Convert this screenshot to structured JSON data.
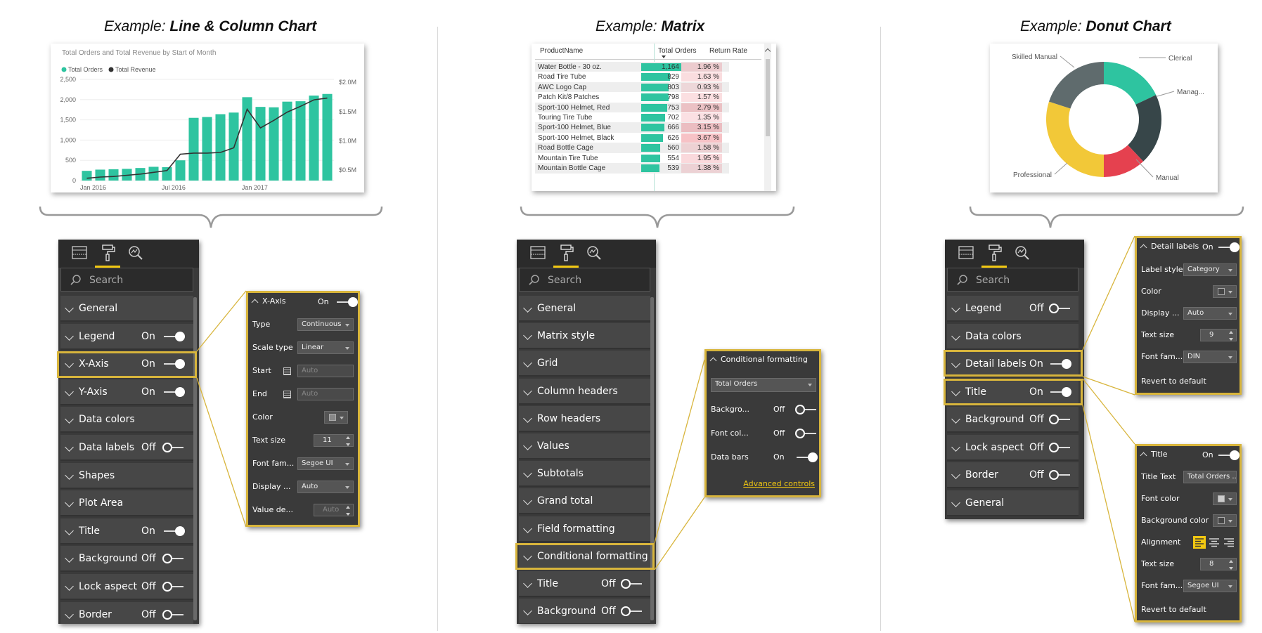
{
  "titles": {
    "col1_prefix": "Example: ",
    "col1_bold": "Line & Column Chart",
    "col2_prefix": "Example: ",
    "col2_bold": "Matrix",
    "col3_prefix": "Example: ",
    "col3_bold": "Donut Chart"
  },
  "colors": {
    "teal": "#2ec4a0",
    "line": "#333333",
    "highlight": "#d8b53c",
    "pane_bg": "#3a3a3a",
    "accent_yellow": "#f2c811"
  },
  "chart_data": [
    {
      "type": "bar+line",
      "title": "Total Orders and Total Revenue by Start of Month",
      "legend": [
        "Total Orders",
        "Total Revenue"
      ],
      "legend_colors": [
        "#2ec4a0",
        "#333333"
      ],
      "legend_position": "top-left",
      "x_ticks": [
        "Jan 2016",
        "Jul 2016",
        "Jan 2017"
      ],
      "y_ticks": [
        "0",
        "500",
        "1,000",
        "1,500",
        "2,000",
        "2,500"
      ],
      "y2_ticks": [
        "$0.5M",
        "$1.0M",
        "$1.5M",
        "$2.0M"
      ],
      "ylim": [
        0,
        2500
      ],
      "y2lim": [
        0.32,
        2.05
      ],
      "series": [
        {
          "name": "Total Orders",
          "type": "bar",
          "values": [
            240,
            270,
            280,
            290,
            310,
            340,
            330,
            500,
            1550,
            1570,
            1640,
            1680,
            2060,
            1820,
            1810,
            1950,
            1960,
            2100,
            2140
          ]
        },
        {
          "name": "Total Revenue",
          "type": "line",
          "values": [
            0.36,
            0.38,
            0.39,
            0.41,
            0.43,
            0.46,
            0.49,
            0.77,
            0.79,
            0.79,
            0.8,
            0.88,
            1.54,
            1.22,
            1.35,
            1.49,
            1.59,
            1.7,
            1.73
          ]
        }
      ],
      "grid": true
    },
    {
      "type": "table",
      "columns": [
        "ProductName",
        "Total Orders",
        "Return Rate"
      ],
      "rows": [
        {
          "product": "Water Bottle - 30 oz.",
          "orders": 1164,
          "orders_text": "1,164",
          "return_rate": "1.96 %",
          "rr_value": 1.96
        },
        {
          "product": "Road Tire Tube",
          "orders": 829,
          "orders_text": "829",
          "return_rate": "1.63 %",
          "rr_value": 1.63
        },
        {
          "product": "AWC Logo Cap",
          "orders": 803,
          "orders_text": "803",
          "return_rate": "0.93 %",
          "rr_value": 0.93
        },
        {
          "product": "Patch Kit/8 Patches",
          "orders": 798,
          "orders_text": "798",
          "return_rate": "1.57 %",
          "rr_value": 1.57
        },
        {
          "product": "Sport-100 Helmet, Red",
          "orders": 753,
          "orders_text": "753",
          "return_rate": "2.79 %",
          "rr_value": 2.79
        },
        {
          "product": "Touring Tire Tube",
          "orders": 702,
          "orders_text": "702",
          "return_rate": "1.35 %",
          "rr_value": 1.35
        },
        {
          "product": "Sport-100 Helmet, Blue",
          "orders": 666,
          "orders_text": "666",
          "return_rate": "3.15 %",
          "rr_value": 3.15
        },
        {
          "product": "Sport-100 Helmet, Black",
          "orders": 626,
          "orders_text": "626",
          "return_rate": "3.67 %",
          "rr_value": 3.67
        },
        {
          "product": "Road Bottle Cage",
          "orders": 560,
          "orders_text": "560",
          "return_rate": "1.58 %",
          "rr_value": 1.58
        },
        {
          "product": "Mountain Tire Tube",
          "orders": 554,
          "orders_text": "554",
          "return_rate": "1.95 %",
          "rr_value": 1.95
        },
        {
          "product": "Mountain Bottle Cage",
          "orders": 539,
          "orders_text": "539",
          "return_rate": "1.38 %",
          "rr_value": 1.38
        }
      ]
    },
    {
      "type": "pie",
      "donut": true,
      "slices": [
        {
          "label": "Clerical",
          "value": 18,
          "color": "#2ec4a0"
        },
        {
          "label": "Manag...",
          "value": 20,
          "color": "#374649"
        },
        {
          "label": "Manual",
          "value": 12,
          "color": "#e5414f"
        },
        {
          "label": "Professional",
          "value": 30,
          "color": "#f2c838"
        },
        {
          "label": "Skilled Manual",
          "value": 20,
          "color": "#5f6b6d"
        }
      ]
    }
  ],
  "pane1": {
    "search_placeholder": "Search",
    "items": [
      {
        "label": "General",
        "state": "",
        "toggle": ""
      },
      {
        "label": "Legend",
        "state": "On",
        "toggle": "on"
      },
      {
        "label": "X-Axis",
        "state": "On",
        "toggle": "on"
      },
      {
        "label": "Y-Axis",
        "state": "On",
        "toggle": "on"
      },
      {
        "label": "Data colors",
        "state": "",
        "toggle": ""
      },
      {
        "label": "Data labels",
        "state": "Off",
        "toggle": "off"
      },
      {
        "label": "Shapes",
        "state": "",
        "toggle": ""
      },
      {
        "label": "Plot Area",
        "state": "",
        "toggle": ""
      },
      {
        "label": "Title",
        "state": "On",
        "toggle": "on"
      },
      {
        "label": "Background",
        "state": "Off",
        "toggle": "off"
      },
      {
        "label": "Lock aspect",
        "state": "Off",
        "toggle": "off"
      },
      {
        "label": "Border",
        "state": "Off",
        "toggle": "off"
      }
    ]
  },
  "xaxis_panel": {
    "header": "X-Axis",
    "header_state": "On",
    "rows": [
      {
        "label": "Type",
        "value": "Continuous"
      },
      {
        "label": "Scale type",
        "value": "Linear"
      },
      {
        "label": "Start",
        "value": "Auto"
      },
      {
        "label": "End",
        "value": "Auto"
      },
      {
        "label": "Color",
        "value": ""
      },
      {
        "label": "Text size",
        "value": "11"
      },
      {
        "label": "Font fam...",
        "value": "Segoe UI"
      },
      {
        "label": "Display ...",
        "value": "Auto"
      },
      {
        "label": "Value de...",
        "value": "Auto"
      }
    ]
  },
  "pane2": {
    "search_placeholder": "Search",
    "items": [
      {
        "label": "General",
        "state": "",
        "toggle": ""
      },
      {
        "label": "Matrix style",
        "state": "",
        "toggle": ""
      },
      {
        "label": "Grid",
        "state": "",
        "toggle": ""
      },
      {
        "label": "Column headers",
        "state": "",
        "toggle": ""
      },
      {
        "label": "Row headers",
        "state": "",
        "toggle": ""
      },
      {
        "label": "Values",
        "state": "",
        "toggle": ""
      },
      {
        "label": "Subtotals",
        "state": "",
        "toggle": ""
      },
      {
        "label": "Grand total",
        "state": "",
        "toggle": ""
      },
      {
        "label": "Field formatting",
        "state": "",
        "toggle": ""
      },
      {
        "label": "Conditional formatting",
        "state": "",
        "toggle": ""
      },
      {
        "label": "Title",
        "state": "Off",
        "toggle": "off"
      },
      {
        "label": "Background",
        "state": "Off",
        "toggle": "off"
      }
    ]
  },
  "cond_panel": {
    "header": "Conditional formatting",
    "field": "Total Orders",
    "rows": [
      {
        "label": "Backgro...",
        "state": "Off",
        "toggle": "off"
      },
      {
        "label": "Font col...",
        "state": "Off",
        "toggle": "off"
      },
      {
        "label": "Data bars",
        "state": "On",
        "toggle": "on"
      }
    ],
    "link": "Advanced controls"
  },
  "pane3": {
    "search_placeholder": "Search",
    "items": [
      {
        "label": "Legend",
        "state": "Off",
        "toggle": "off"
      },
      {
        "label": "Data colors",
        "state": "",
        "toggle": ""
      },
      {
        "label": "Detail labels",
        "state": "On",
        "toggle": "on"
      },
      {
        "label": "Title",
        "state": "On",
        "toggle": "on"
      },
      {
        "label": "Background",
        "state": "Off",
        "toggle": "off"
      },
      {
        "label": "Lock aspect",
        "state": "Off",
        "toggle": "off"
      },
      {
        "label": "Border",
        "state": "Off",
        "toggle": "off"
      },
      {
        "label": "General",
        "state": "",
        "toggle": ""
      }
    ]
  },
  "detail_panel": {
    "header": "Detail labels",
    "header_state": "On",
    "rows": [
      {
        "label": "Label style",
        "value": "Category"
      },
      {
        "label": "Color",
        "value": ""
      },
      {
        "label": "Display ...",
        "value": "Auto"
      },
      {
        "label": "Text size",
        "value": "9"
      },
      {
        "label": "Font fam...",
        "value": "DIN"
      }
    ],
    "revert": "Revert to default"
  },
  "title_panel": {
    "header": "Title",
    "header_state": "On",
    "rows": [
      {
        "label": "Title Text",
        "value": "Total Orders ..."
      },
      {
        "label": "Font color",
        "value": ""
      },
      {
        "label": "Background color",
        "value": ""
      },
      {
        "label": "Alignment",
        "value": ""
      },
      {
        "label": "Text size",
        "value": "8"
      },
      {
        "label": "Font fam...",
        "value": "Segoe UI"
      }
    ],
    "revert": "Revert to default"
  }
}
